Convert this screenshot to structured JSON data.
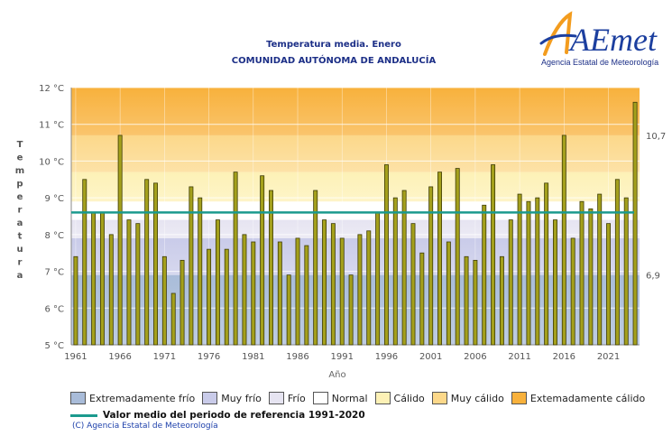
{
  "header": {
    "title_line1": "Temperatura media. Enero",
    "title_line2": "COMUNIDAD AUTÓNOMA DE ANDALUCÍA"
  },
  "logo": {
    "mark": "AEmet",
    "subtitle": "Agencia Estatal de Meteorología"
  },
  "legend": {
    "items": [
      {
        "label": "Extremadamente frío",
        "color": "#a9bcd9"
      },
      {
        "label": "Muy frío",
        "color": "#c9cbe9"
      },
      {
        "label": "Frío",
        "color": "#e6e4f1"
      },
      {
        "label": "Normal",
        "color": "#ffffff"
      },
      {
        "label": "Cálido",
        "color": "#fdf1b6"
      },
      {
        "label": "Muy cálido",
        "color": "#fcd88a"
      },
      {
        "label": "Extemadamente cálido",
        "color": "#f8b13c"
      }
    ],
    "reference_label": "Valor medio del periodo de referencia 1991-2020",
    "reference_color": "#1b9a8e",
    "copyright": "(C) Agencia Estatal de Meteorología"
  },
  "chart_data": {
    "type": "bar",
    "title": "Temperatura media. Enero",
    "subtitle": "COMUNIDAD AUTÓNOMA DE ANDALUCÍA",
    "xlabel": "Año",
    "ylabel": "Temperatura",
    "ylim": [
      5,
      12
    ],
    "y_ticks": [
      "5 °C",
      "6 °C",
      "7 °C",
      "8 °C",
      "9 °C",
      "10 °C",
      "11 °C",
      "12 °C"
    ],
    "x_ticks": [
      "1961",
      "1966",
      "1971",
      "1976",
      "1981",
      "1986",
      "1991",
      "1996",
      "2001",
      "2006",
      "2011",
      "2016",
      "2021"
    ],
    "reference_mean": 8.6,
    "right_labels": [
      "10,7",
      "6,9"
    ],
    "bands": [
      {
        "name": "Extremadamente frío",
        "from": 5.0,
        "to": 6.9,
        "color": "#a9bcd9"
      },
      {
        "name": "Muy frío",
        "from": 6.9,
        "to": 7.9,
        "color": "#c9cbe9"
      },
      {
        "name": "Frío",
        "from": 7.9,
        "to": 8.4,
        "color": "#e6e4f1"
      },
      {
        "name": "Normal",
        "from": 8.4,
        "to": 8.9,
        "color": "#ffffff"
      },
      {
        "name": "Cálido",
        "from": 8.9,
        "to": 9.7,
        "color": "#fdf1b6"
      },
      {
        "name": "Muy cálido",
        "from": 9.7,
        "to": 10.7,
        "color": "#fcd88a"
      },
      {
        "name": "Extemadamente cálido",
        "from": 10.7,
        "to": 12.0,
        "color": "#f8b13c"
      }
    ],
    "years": [
      1961,
      1962,
      1963,
      1964,
      1965,
      1966,
      1967,
      1968,
      1969,
      1970,
      1971,
      1972,
      1973,
      1974,
      1975,
      1976,
      1977,
      1978,
      1979,
      1980,
      1981,
      1982,
      1983,
      1984,
      1985,
      1986,
      1987,
      1988,
      1989,
      1990,
      1991,
      1992,
      1993,
      1994,
      1995,
      1996,
      1997,
      1998,
      1999,
      2000,
      2001,
      2002,
      2003,
      2004,
      2005,
      2006,
      2007,
      2008,
      2009,
      2010,
      2011,
      2012,
      2013,
      2014,
      2015,
      2016,
      2017,
      2018,
      2019,
      2020,
      2021,
      2022,
      2023,
      2024
    ],
    "values": [
      7.4,
      9.5,
      8.6,
      8.6,
      8.0,
      10.7,
      8.4,
      8.3,
      9.5,
      9.4,
      7.4,
      6.4,
      7.3,
      9.3,
      9.0,
      7.6,
      8.4,
      7.6,
      9.7,
      8.0,
      7.8,
      9.6,
      9.2,
      7.8,
      6.9,
      7.9,
      7.7,
      9.2,
      8.4,
      8.3,
      7.9,
      6.9,
      8.0,
      8.1,
      8.6,
      9.9,
      9.0,
      9.2,
      8.3,
      7.5,
      9.3,
      9.7,
      7.8,
      9.8,
      7.4,
      7.3,
      8.8,
      9.9,
      7.4,
      8.4,
      9.1,
      8.9,
      9.0,
      9.4,
      8.4,
      10.7,
      7.9,
      8.9,
      8.7,
      9.1,
      8.3,
      9.5,
      9.0,
      11.6
    ]
  }
}
